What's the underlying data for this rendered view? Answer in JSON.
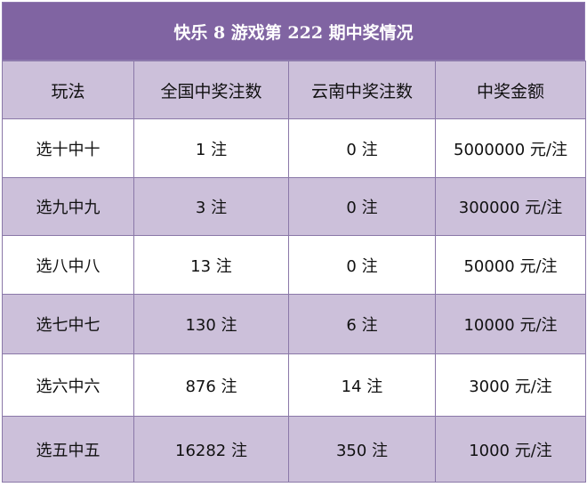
{
  "title": "快乐 8 游戏第 222 期中奖情况",
  "headers": [
    "玩法",
    "全国中奖注数",
    "云南中奖注数",
    "中奖金额"
  ],
  "rows": [
    [
      "选十中十",
      "1 注",
      "0 注",
      "5000000 元/注"
    ],
    [
      "选九中九",
      "3 注",
      "0 注",
      "300000 元/注"
    ],
    [
      "选八中八",
      "13 注",
      "0 注",
      "50000 元/注"
    ],
    [
      "选七中七",
      "130 注",
      "6 注",
      "10000 元/注"
    ],
    [
      "选六中六",
      "876 注",
      "14 注",
      "3000 元/注"
    ],
    [
      "选五中五",
      "16282 注",
      "350 注",
      "1000 元/注"
    ]
  ],
  "colors": {
    "title_bg": "#8064a2",
    "header_bg": "#ccc0da",
    "band_bg": "#ccc0da",
    "border": "#8a78a8"
  }
}
